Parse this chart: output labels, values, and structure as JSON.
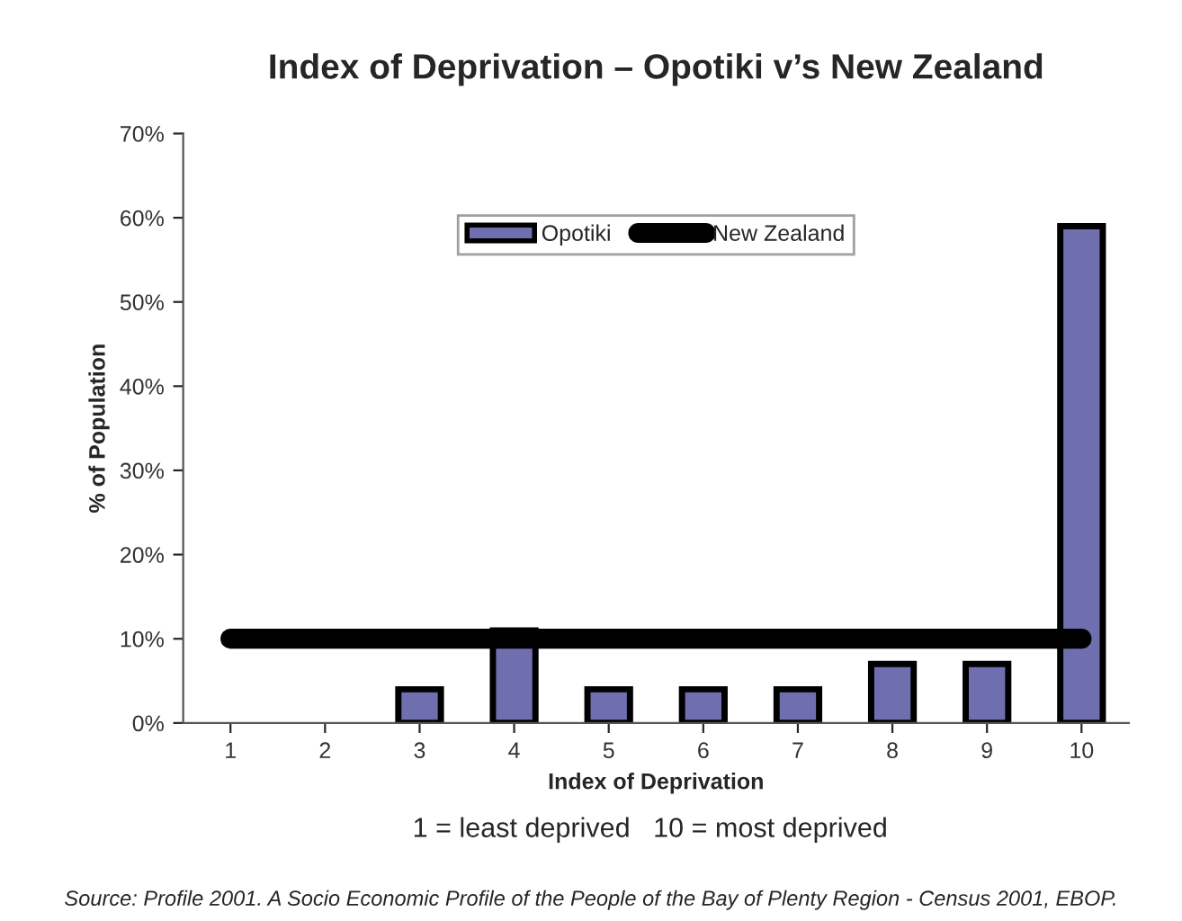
{
  "chart_data": {
    "type": "bar",
    "title": "Index of Deprivation – Opotiki v’s New Zealand",
    "xlabel": "Index of Deprivation",
    "ylabel": "% of Population",
    "categories": [
      "1",
      "2",
      "3",
      "4",
      "5",
      "6",
      "7",
      "8",
      "9",
      "10"
    ],
    "series": [
      {
        "name": "Opotiki",
        "color": "#6f6fb0",
        "values": [
          0,
          0,
          4,
          11,
          4,
          4,
          4,
          7,
          7,
          59
        ]
      },
      {
        "name": "New Zealand",
        "type": "line",
        "color": "#000000",
        "values": [
          10,
          10,
          10,
          10,
          10,
          10,
          10,
          10,
          10,
          10
        ]
      }
    ],
    "ylim": [
      0,
      70
    ],
    "yticks": [
      {
        "value": 0,
        "label": "0%"
      },
      {
        "value": 10,
        "label": "10%"
      },
      {
        "value": 20,
        "label": "20%"
      },
      {
        "value": 30,
        "label": "30%"
      },
      {
        "value": 40,
        "label": "40%"
      },
      {
        "value": 50,
        "label": "50%"
      },
      {
        "value": 60,
        "label": "60%"
      },
      {
        "value": 70,
        "label": "70%"
      }
    ],
    "grid": false,
    "legend": "top",
    "line_style": "solid",
    "annotations": [
      "1 = least deprived   10 = most deprived",
      "Source: Profile 2001. A Socio Economic Profile of the People of the Bay of Plenty Region - Census 2001, EBOP."
    ]
  }
}
